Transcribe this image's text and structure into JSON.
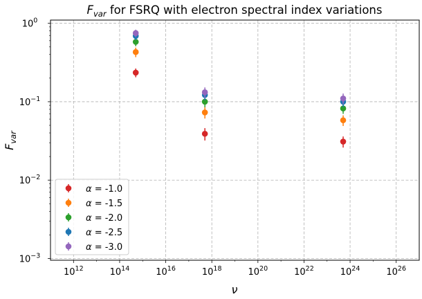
{
  "chart_data": {
    "type": "scatter",
    "title": {
      "prefix": "F",
      "sub": "var",
      "rest": " for FSRQ with electron spectral index variations"
    },
    "xlabel": "ν",
    "ylabel": {
      "main": "F",
      "sub": "var"
    },
    "xscale": "log",
    "yscale": "log",
    "xlim": [
      100000000000.0,
      1e+27
    ],
    "ylim": [
      0.00095,
      1.1
    ],
    "grid": true,
    "legend_position": "lower-left",
    "x_ticks": [
      {
        "value": 1000000000000.0,
        "base": "10",
        "exp": "12"
      },
      {
        "value": 100000000000000.0,
        "base": "10",
        "exp": "14"
      },
      {
        "value": 1e+16,
        "base": "10",
        "exp": "16"
      },
      {
        "value": 1e+18,
        "base": "10",
        "exp": "18"
      },
      {
        "value": 1e+20,
        "base": "10",
        "exp": "20"
      },
      {
        "value": 1e+22,
        "base": "10",
        "exp": "22"
      },
      {
        "value": 1e+24,
        "base": "10",
        "exp": "24"
      },
      {
        "value": 1e+26,
        "base": "10",
        "exp": "26"
      }
    ],
    "y_ticks": [
      {
        "value": 0.001,
        "base": "10",
        "exp": "−3"
      },
      {
        "value": 0.01,
        "base": "10",
        "exp": "−2"
      },
      {
        "value": 0.1,
        "base": "10",
        "exp": "−1"
      },
      {
        "value": 1,
        "base": "10",
        "exp": "0"
      }
    ],
    "x": [
      500000000000000.0,
      5e+17,
      5e+23
    ],
    "series": [
      {
        "name": "α = -1.0",
        "alpha_symbol": "α",
        "alpha_value": " = -1.0",
        "color": "#d62728",
        "values": [
          0.235,
          0.039,
          0.031
        ],
        "errors": [
          0.03,
          0.007,
          0.005
        ]
      },
      {
        "name": "α = -1.5",
        "alpha_symbol": "α",
        "alpha_value": " = -1.5",
        "color": "#ff7f0e",
        "values": [
          0.43,
          0.073,
          0.058
        ],
        "errors": [
          0.06,
          0.012,
          0.009
        ]
      },
      {
        "name": "α = -2.0",
        "alpha_symbol": "α",
        "alpha_value": " = -2.0",
        "color": "#2ca02c",
        "values": [
          0.58,
          0.1,
          0.082
        ],
        "errors": [
          0.07,
          0.015,
          0.012
        ]
      },
      {
        "name": "α = -2.5",
        "alpha_symbol": "α",
        "alpha_value": " = -2.5",
        "color": "#1f77b4",
        "values": [
          0.69,
          0.122,
          0.1
        ],
        "errors": [
          0.08,
          0.018,
          0.015
        ]
      },
      {
        "name": "α = -3.0",
        "alpha_symbol": "α",
        "alpha_value": " = -3.0",
        "color": "#9467bd",
        "values": [
          0.75,
          0.132,
          0.11
        ],
        "errors": [
          0.08,
          0.02,
          0.017
        ]
      }
    ]
  }
}
